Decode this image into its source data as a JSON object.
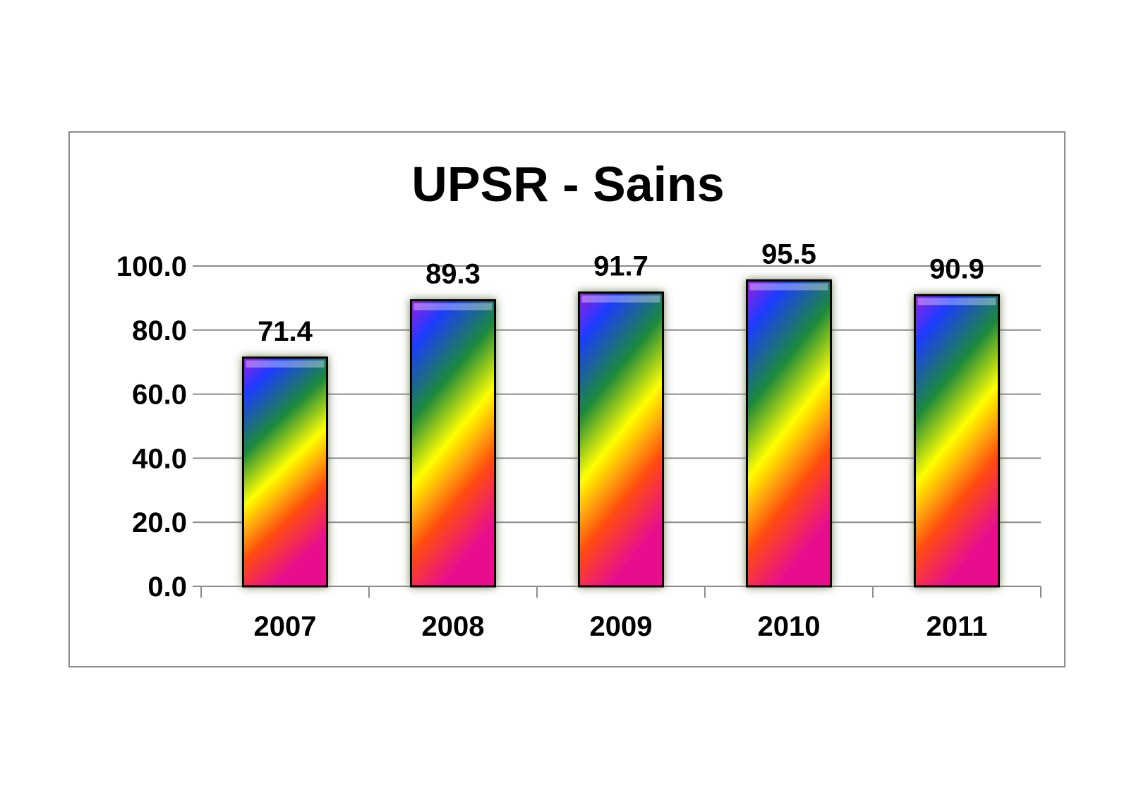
{
  "chart_data": {
    "type": "bar",
    "title": "UPSR - Sains",
    "categories": [
      "2007",
      "2008",
      "2009",
      "2010",
      "2011"
    ],
    "values": [
      71.4,
      89.3,
      91.7,
      95.5,
      90.9
    ],
    "data_labels": [
      "71.4",
      "89.3",
      "91.7",
      "95.5",
      "90.9"
    ],
    "ylim": [
      0,
      100
    ],
    "yticks": [
      "0.0",
      "20.0",
      "40.0",
      "60.0",
      "80.0",
      "100.0"
    ],
    "xlabel": "",
    "ylabel": "",
    "grid": true,
    "legend": "none",
    "bar_fill": "rainbow gradient",
    "colors": {
      "gradient": [
        "#9b1fe0",
        "#1f3bff",
        "#1e8a3a",
        "#ffff00",
        "#ff4a12",
        "#e8108c"
      ],
      "bar_outline": "#000000",
      "gridline": "#8c8c8c",
      "frame": "#8c8c8c"
    }
  }
}
